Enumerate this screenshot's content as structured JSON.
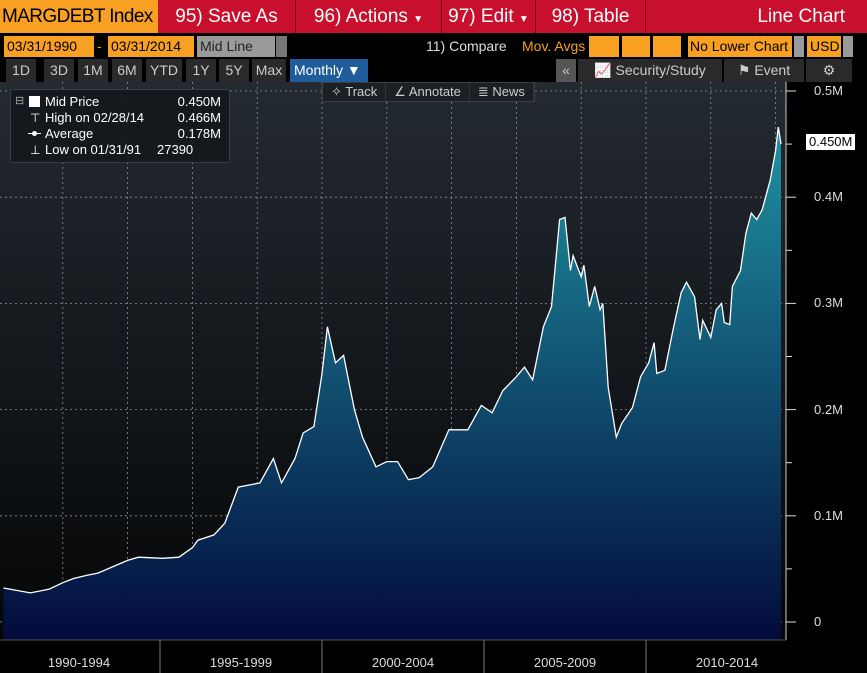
{
  "header": {
    "ticker": "MARGDEBT Index",
    "save_as": "95) Save As",
    "actions": "96) Actions",
    "edit": "97) Edit",
    "table": "98) Table",
    "chart_type": "Line Chart"
  },
  "controls": {
    "start_date": "03/31/1990",
    "sep": "-",
    "end_date": "03/31/2014",
    "line_type": "Mid Line",
    "compare": "11) Compare",
    "mov_avgs": "Mov. Avgs",
    "lower_chart": "No Lower Chart",
    "currency": "USD"
  },
  "periods": [
    "1D",
    "3D",
    "1M",
    "6M",
    "YTD",
    "1Y",
    "5Y",
    "Max"
  ],
  "frequency": "Monthly ▼",
  "collapse": "«",
  "security_study": "Security/Study",
  "event": "Event",
  "tools": {
    "track": "✧ Track",
    "annotate": "∠ Annotate",
    "news": "≣ News"
  },
  "legend": {
    "mid_label": "Mid Price",
    "mid_value": "0.450M",
    "high_label": "High on 02/28/14",
    "high_value": "0.466M",
    "avg_label": "Average",
    "avg_value": "0.178M",
    "low_label": "Low on 01/31/91",
    "low_value": "27390"
  },
  "colors": {
    "line": "#ffffff",
    "fill_top": "#1f93a3",
    "fill_bottom": "#020b3c",
    "header_orange": "#f7a021",
    "header_red": "#c8102e"
  },
  "chart_data": {
    "type": "area",
    "title": "",
    "y_unit": "M",
    "ylim": [
      0,
      0.5
    ],
    "yticks": [
      "0",
      "0.1M",
      "0.2M",
      "0.3M",
      "0.4M",
      "0.5M"
    ],
    "last_value_label": "0.450M",
    "x_labels": [
      "1990-1994",
      "1995-1999",
      "2000-2004",
      "2005-2009",
      "2010-2014"
    ],
    "grid": true,
    "x": [
      "1990-03",
      "1991-01",
      "1991-08",
      "1992-01",
      "1992-05",
      "1992-10",
      "1993-02",
      "1994-01",
      "1994-05",
      "1995-02",
      "1995-08",
      "1996-01",
      "1996-03",
      "1996-09",
      "1997-01",
      "1997-06",
      "1998-02",
      "1998-07",
      "1998-10",
      "1999-03",
      "1999-06",
      "1999-10",
      "2000-01",
      "2000-03",
      "2000-06",
      "2000-09",
      "2001-01",
      "2001-04",
      "2001-09",
      "2002-01",
      "2002-05",
      "2002-09",
      "2003-01",
      "2003-06",
      "2003-12",
      "2004-07",
      "2004-12",
      "2005-04",
      "2005-08",
      "2006-01",
      "2006-04",
      "2006-07",
      "2006-11",
      "2007-02",
      "2007-05",
      "2007-07",
      "2007-09",
      "2007-10",
      "2008-01",
      "2008-02",
      "2008-04",
      "2008-06",
      "2008-08",
      "2008-09",
      "2008-11",
      "2009-02",
      "2009-04",
      "2009-08",
      "2009-11",
      "2010-02",
      "2010-04",
      "2010-05",
      "2010-08",
      "2010-11",
      "2011-02",
      "2011-04",
      "2011-07",
      "2011-09",
      "2011-10",
      "2012-01",
      "2012-03",
      "2012-05",
      "2012-06",
      "2012-08",
      "2012-09",
      "2012-12",
      "2013-02",
      "2013-04",
      "2013-06",
      "2013-08",
      "2013-11",
      "2014-01",
      "2014-02",
      "2014-03"
    ],
    "y": [
      0.032,
      0.0274,
      0.031,
      0.037,
      0.041,
      0.044,
      0.046,
      0.058,
      0.061,
      0.06,
      0.061,
      0.07,
      0.077,
      0.082,
      0.093,
      0.127,
      0.131,
      0.154,
      0.131,
      0.154,
      0.178,
      0.184,
      0.234,
      0.278,
      0.244,
      0.251,
      0.2,
      0.174,
      0.146,
      0.151,
      0.151,
      0.134,
      0.136,
      0.146,
      0.181,
      0.181,
      0.204,
      0.197,
      0.218,
      0.231,
      0.24,
      0.228,
      0.278,
      0.297,
      0.379,
      0.381,
      0.331,
      0.345,
      0.325,
      0.336,
      0.297,
      0.316,
      0.294,
      0.3,
      0.221,
      0.174,
      0.187,
      0.202,
      0.231,
      0.244,
      0.263,
      0.234,
      0.237,
      0.275,
      0.31,
      0.32,
      0.306,
      0.266,
      0.284,
      0.268,
      0.294,
      0.3,
      0.282,
      0.28,
      0.316,
      0.331,
      0.366,
      0.385,
      0.379,
      0.388,
      0.416,
      0.444,
      0.466,
      0.45
    ]
  }
}
